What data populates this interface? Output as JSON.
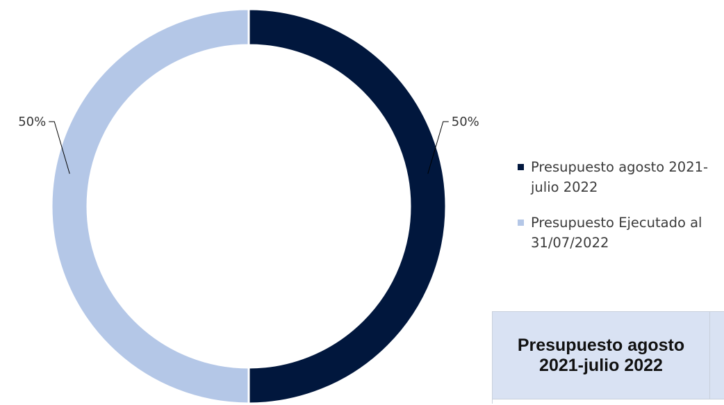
{
  "chart_data": {
    "type": "pie",
    "subtype": "doughnut",
    "title": "",
    "slices": [
      {
        "name": "Presupuesto agosto 2021-julio 2022",
        "value": 50,
        "label": "50%",
        "color": "#01173d"
      },
      {
        "name": "Presupuesto Ejecutado al 31/07/2022",
        "value": 50,
        "label": "50%",
        "color": "#b4c7e7"
      }
    ],
    "legend_position": "right"
  },
  "legend": {
    "items": [
      {
        "label": "Presupuesto agosto 2021-julio 2022",
        "color": "#01173d"
      },
      {
        "label": "Presupuesto Ejecutado al 31/07/2022",
        "color": "#b4c7e7"
      }
    ]
  },
  "table": {
    "header": "Presupuesto agosto 2021-julio 2022"
  }
}
